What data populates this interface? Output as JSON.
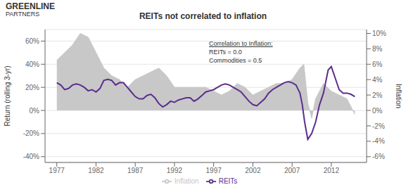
{
  "chart_data": {
    "type": "line",
    "title": "REITs not correlated to inflation",
    "logo": [
      "GREENLINE",
      "PARTNERS"
    ],
    "annotations": [
      "Correlation to Inflation:",
      "REITs = 0.0",
      "Commodities = 0.5"
    ],
    "xlim": [
      1975.5,
      2016.5
    ],
    "xticks": [
      1977,
      1982,
      1987,
      1992,
      1997,
      2002,
      2007,
      2012
    ],
    "y_label": "Return (rolling 3-yr)",
    "y2_label": "Inflation",
    "ylim": [
      -0.45,
      0.7
    ],
    "yticks": [
      {
        "value": -0.4,
        "label": "-40%"
      },
      {
        "value": -0.2,
        "label": "-20%"
      },
      {
        "value": 0.0,
        "label": "0%"
      },
      {
        "value": 0.2,
        "label": "20%"
      },
      {
        "value": 0.4,
        "label": "40%"
      },
      {
        "value": 0.6,
        "label": "60%"
      }
    ],
    "y2lim": [
      -0.0675,
      0.105
    ],
    "y2ticks": [
      {
        "value": -0.06,
        "label": "-6%"
      },
      {
        "value": -0.04,
        "label": "-4%"
      },
      {
        "value": -0.02,
        "label": "-2%"
      },
      {
        "value": 0.0,
        "label": "0%"
      },
      {
        "value": 0.02,
        "label": "2%"
      },
      {
        "value": 0.04,
        "label": "4%"
      },
      {
        "value": 0.06,
        "label": "6%"
      },
      {
        "value": 0.08,
        "label": "8%"
      },
      {
        "value": 0.1,
        "label": "10%"
      }
    ],
    "grid": true,
    "legend": "bottom",
    "series": [
      {
        "name": "Inflation",
        "type": "area",
        "axis": "y2",
        "color": "#c8c8c8",
        "x": [
          1977,
          1977.5,
          1978,
          1979,
          1980,
          1981,
          1982,
          1983,
          1984,
          1985,
          1986,
          1987,
          1988,
          1989,
          1990,
          1991,
          1992,
          1993,
          1994,
          1995,
          1996,
          1997,
          1998,
          1999,
          2000,
          2001,
          2002,
          2003,
          2004,
          2005,
          2006,
          2007,
          2008,
          2008.5,
          2009,
          2009.5,
          2010,
          2011,
          2012,
          2013,
          2014,
          2015
        ],
        "values": [
          0.065,
          0.07,
          0.075,
          0.085,
          0.1,
          0.095,
          0.075,
          0.055,
          0.045,
          0.04,
          0.03,
          0.04,
          0.045,
          0.05,
          0.055,
          0.045,
          0.03,
          0.03,
          0.03,
          0.03,
          0.03,
          0.025,
          0.02,
          0.025,
          0.035,
          0.03,
          0.02,
          0.025,
          0.03,
          0.035,
          0.035,
          0.04,
          0.055,
          0.06,
          0.01,
          -0.01,
          0.015,
          0.035,
          0.025,
          0.02,
          0.015,
          -0.005
        ]
      },
      {
        "name": "REITs",
        "type": "line",
        "color": "#5b2d8e",
        "x": [
          1977,
          1977.5,
          1978,
          1978.5,
          1979,
          1979.5,
          1980,
          1980.5,
          1981,
          1981.5,
          1982,
          1982.5,
          1983,
          1983.5,
          1984,
          1984.5,
          1985,
          1985.5,
          1986,
          1986.5,
          1987,
          1987.5,
          1988,
          1988.5,
          1989,
          1989.5,
          1990,
          1990.5,
          1991,
          1991.5,
          1992,
          1992.5,
          1993,
          1993.5,
          1994,
          1994.5,
          1995,
          1995.5,
          1996,
          1996.5,
          1997,
          1997.5,
          1998,
          1998.5,
          1999,
          1999.5,
          2000,
          2000.5,
          2001,
          2001.5,
          2002,
          2002.5,
          2003,
          2003.5,
          2004,
          2004.5,
          2005,
          2005.5,
          2006,
          2006.5,
          2007,
          2007.5,
          2008,
          2008.3,
          2008.6,
          2009,
          2009.5,
          2010,
          2010.5,
          2011,
          2011.3,
          2011.6,
          2012,
          2012.5,
          2013,
          2013.5,
          2014,
          2014.5,
          2015
        ],
        "values": [
          0.24,
          0.22,
          0.18,
          0.19,
          0.22,
          0.23,
          0.22,
          0.2,
          0.17,
          0.18,
          0.16,
          0.19,
          0.26,
          0.27,
          0.26,
          0.22,
          0.24,
          0.24,
          0.2,
          0.16,
          0.12,
          0.1,
          0.1,
          0.13,
          0.14,
          0.11,
          0.06,
          0.03,
          0.05,
          0.08,
          0.07,
          0.09,
          0.1,
          0.11,
          0.11,
          0.08,
          0.1,
          0.13,
          0.16,
          0.17,
          0.18,
          0.2,
          0.22,
          0.23,
          0.22,
          0.2,
          0.18,
          0.16,
          0.12,
          0.08,
          0.05,
          0.04,
          0.07,
          0.1,
          0.15,
          0.18,
          0.2,
          0.22,
          0.24,
          0.25,
          0.24,
          0.22,
          0.15,
          0.05,
          -0.1,
          -0.25,
          -0.2,
          -0.1,
          0.05,
          0.15,
          0.25,
          0.35,
          0.38,
          0.28,
          0.18,
          0.15,
          0.15,
          0.14,
          0.12
        ]
      }
    ]
  }
}
